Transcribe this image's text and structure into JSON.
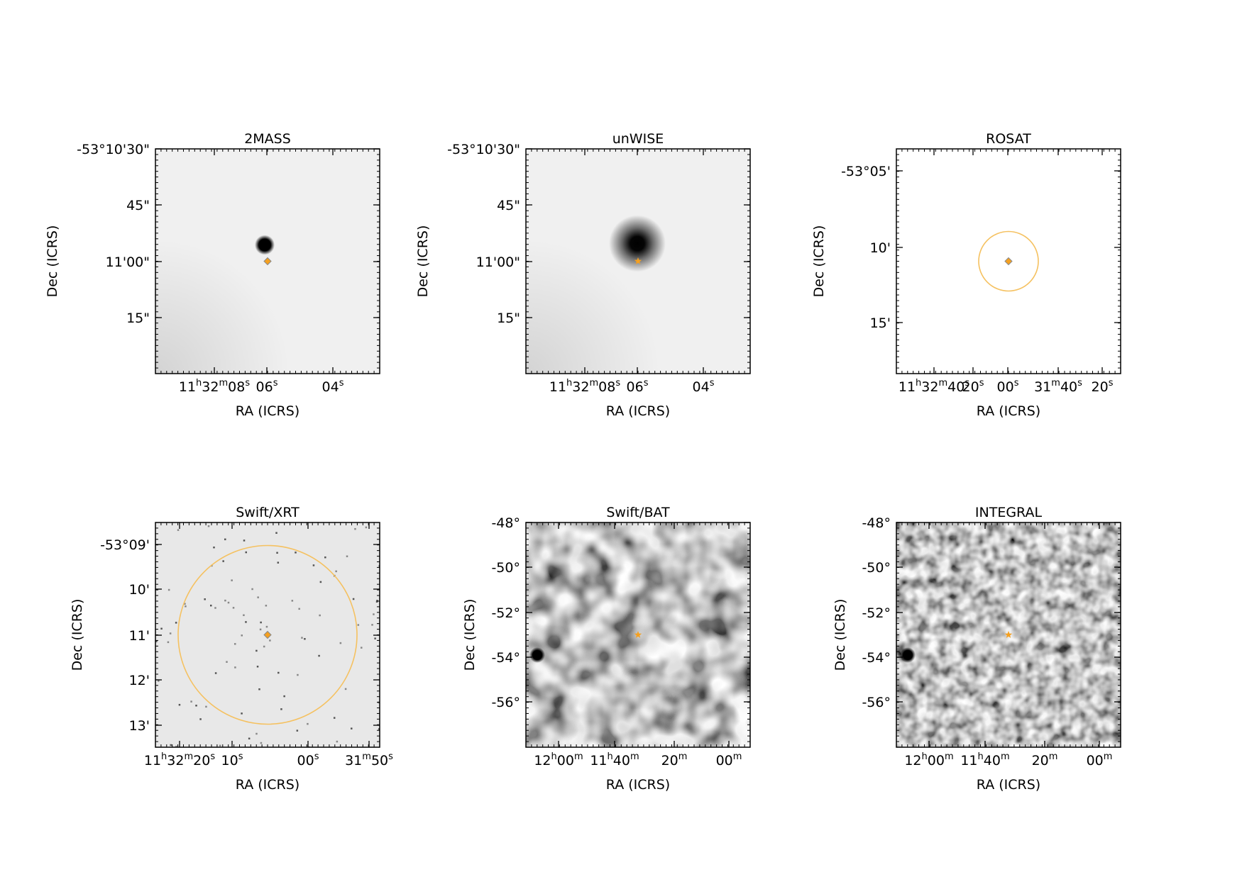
{
  "panels": [
    {
      "title": "2MASS",
      "xlabel": "RA (ICRS)",
      "ylabel": "Dec (ICRS)",
      "xticks": [
        {
          "main": "11",
          "sup1": "h",
          "mid": "32",
          "sup2": "m",
          "tail": "08",
          "sup3": "s"
        },
        {
          "main": "06",
          "sup1": "s"
        },
        {
          "main": "04",
          "sup1": "s"
        }
      ],
      "yticks": [
        "-53°10'30\"",
        "45\"",
        "11'00\"",
        "15\""
      ],
      "image": "blank-bright",
      "sources": [
        {
          "kind": "blob",
          "size": "small"
        }
      ],
      "marker": "diamond",
      "error_circle": false
    },
    {
      "title": "unWISE",
      "xlabel": "RA (ICRS)",
      "ylabel": "Dec (ICRS)",
      "xticks": [
        {
          "main": "11",
          "sup1": "h",
          "mid": "32",
          "sup2": "m",
          "tail": "08",
          "sup3": "s"
        },
        {
          "main": "06",
          "sup1": "s"
        },
        {
          "main": "04",
          "sup1": "s"
        }
      ],
      "yticks": [
        "-53°10'30\"",
        "45\"",
        "11'00\"",
        "15\""
      ],
      "image": "blank-bright",
      "sources": [
        {
          "kind": "blob",
          "size": "large"
        }
      ],
      "marker": "star",
      "error_circle": false
    },
    {
      "title": "ROSAT",
      "xlabel": "RA (ICRS)",
      "ylabel": "Dec (ICRS)",
      "xticks": [
        {
          "main": "11",
          "sup1": "h",
          "mid": "32",
          "sup2": "m",
          "tail": "40",
          "sup3": "s"
        },
        {
          "main": "20",
          "sup1": "s"
        },
        {
          "main": "00",
          "sup1": "s"
        },
        {
          "main": "31",
          "sup1": "m",
          "mid": "40",
          "sup2": "s"
        },
        {
          "main": "20",
          "sup1": "s"
        }
      ],
      "yticks": [
        "-53°05'",
        "10'",
        "15'"
      ],
      "image": "white",
      "sources": [],
      "marker": "diamond",
      "error_circle": true
    },
    {
      "title": "Swift/XRT",
      "xlabel": "RA (ICRS)",
      "ylabel": "Dec (ICRS)",
      "xticks": [
        {
          "main": "11",
          "sup1": "h",
          "mid": "32",
          "sup2": "m",
          "tail": "20",
          "sup3": "s"
        },
        {
          "main": "10",
          "sup1": "s"
        },
        {
          "main": "00",
          "sup1": "s"
        },
        {
          "main": "31",
          "sup1": "m",
          "mid": "50",
          "sup2": "s"
        }
      ],
      "yticks": [
        "-53°09'",
        "10'",
        "11'",
        "12'",
        "13'"
      ],
      "image": "photon-events",
      "sources": [],
      "marker": "diamond",
      "error_circle": true
    },
    {
      "title": "Swift/BAT",
      "xlabel": "RA (ICRS)",
      "ylabel": "Dec (ICRS)",
      "xticks": [
        {
          "main": "12",
          "sup1": "h",
          "mid": "00",
          "sup2": "m"
        },
        {
          "main": "11",
          "sup1": "h",
          "mid": "40",
          "sup2": "m"
        },
        {
          "main": "20",
          "sup1": "m"
        },
        {
          "main": "00",
          "sup1": "m"
        }
      ],
      "yticks": [
        "-48°",
        "-50°",
        "-52°",
        "-54°",
        "-56°"
      ],
      "image": "noise-coarse",
      "sources": [
        {
          "kind": "blob",
          "size": "edge"
        }
      ],
      "marker": "star",
      "error_circle": false
    },
    {
      "title": "INTEGRAL",
      "xlabel": "RA (ICRS)",
      "ylabel": "Dec (ICRS)",
      "xticks": [
        {
          "main": "12",
          "sup1": "h",
          "mid": "00",
          "sup2": "m"
        },
        {
          "main": "11",
          "sup1": "h",
          "mid": "40",
          "sup2": "m"
        },
        {
          "main": "20",
          "sup1": "m"
        },
        {
          "main": "00",
          "sup1": "m"
        }
      ],
      "yticks": [
        "-48°",
        "-50°",
        "-52°",
        "-54°",
        "-56°"
      ],
      "image": "noise-fine",
      "sources": [
        {
          "kind": "blob",
          "size": "edge"
        }
      ],
      "marker": "star",
      "error_circle": false
    }
  ],
  "colors": {
    "marker": "#f5a020",
    "marker_edge": "#8a8a8a",
    "error_circle": "#f5c160",
    "frame": "#000000"
  }
}
